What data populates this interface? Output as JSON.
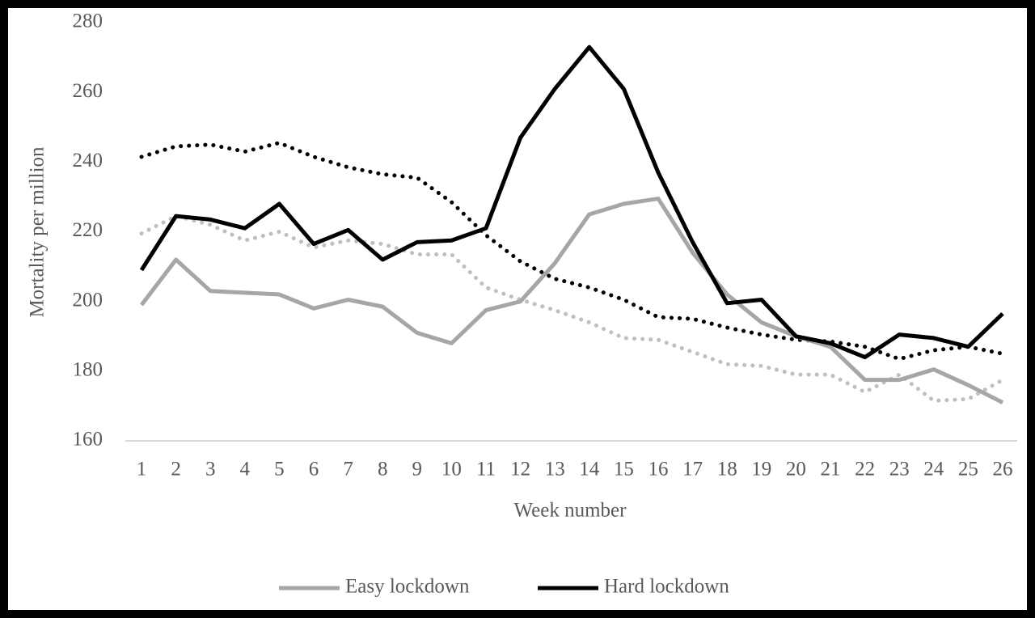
{
  "chart_data": {
    "type": "line",
    "x_label": "Week number",
    "y_label": "Mortality per million",
    "categories": [
      "1",
      "2",
      "3",
      "4",
      "5",
      "6",
      "7",
      "8",
      "9",
      "10",
      "11",
      "12",
      "13",
      "14",
      "15",
      "16",
      "17",
      "18",
      "19",
      "20",
      "21",
      "22",
      "23",
      "24",
      "25",
      "26"
    ],
    "ylim": [
      160,
      280
    ],
    "yticks": [
      160,
      180,
      200,
      220,
      240,
      260,
      280
    ],
    "grid": false,
    "legend": "bottom",
    "series": [
      {
        "name": "Easy lockdown",
        "color": "#a6a6a6",
        "style": "solid",
        "values": [
          199,
          212,
          203,
          202.5,
          202,
          198,
          200.5,
          198.5,
          191,
          188,
          197.5,
          200,
          211,
          225,
          228,
          229.5,
          214,
          202,
          194,
          190,
          187,
          177.5,
          177.5,
          180.5,
          176,
          171
        ]
      },
      {
        "name": "Hard lockdown",
        "color": "#000000",
        "style": "solid",
        "values": [
          209,
          224.5,
          223.5,
          221,
          228,
          216.5,
          220.5,
          212,
          217,
          217.5,
          221,
          247,
          261,
          273,
          261,
          237,
          217,
          199.5,
          200.5,
          190,
          188,
          184,
          190.5,
          189.5,
          187,
          196.5
        ]
      },
      {
        "color": "#bfbfbf",
        "style": "dotted",
        "values": [
          219.5,
          224.5,
          222,
          217.5,
          220,
          215.5,
          217.5,
          216.5,
          213.5,
          213.5,
          204,
          200.5,
          197.5,
          194,
          189.5,
          189,
          185.5,
          182,
          181.5,
          179,
          179,
          174,
          179,
          171.5,
          172,
          177.5
        ]
      },
      {
        "color": "#000000",
        "style": "dotted",
        "values": [
          241.5,
          244.5,
          245,
          243,
          245.5,
          241.5,
          238.5,
          236.5,
          235.5,
          228.5,
          219,
          211.5,
          206.5,
          204,
          200.5,
          195.5,
          195,
          192.5,
          190.5,
          189,
          188.5,
          187,
          183.5,
          186,
          187,
          185
        ]
      }
    ]
  }
}
